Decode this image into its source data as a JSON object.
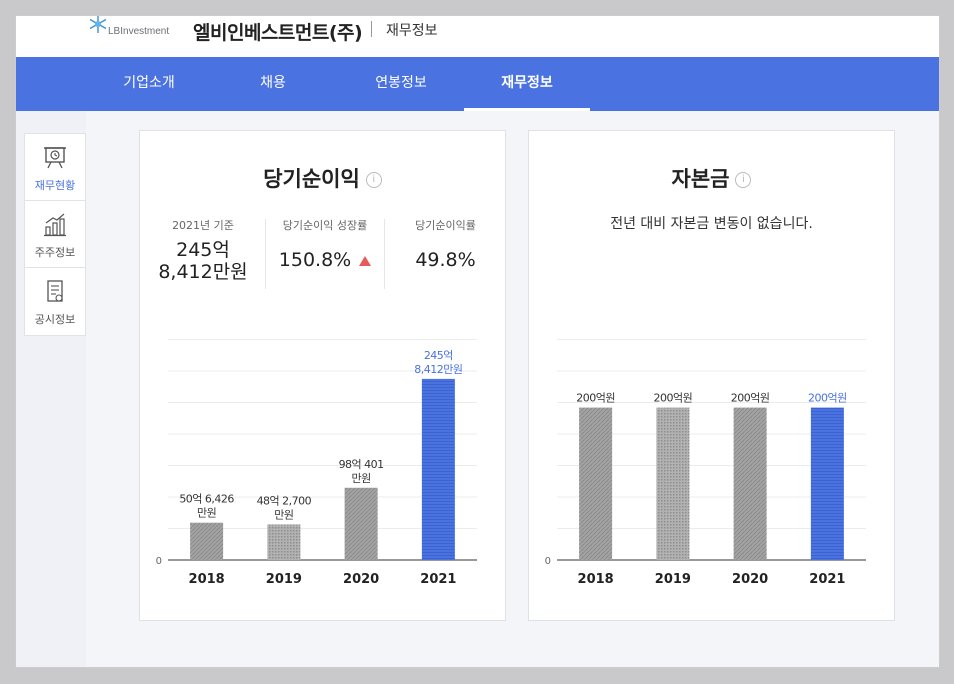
{
  "header": {
    "logo_text": "LBInvestment",
    "company_name": "엘비인베스트먼트(주)",
    "section": "재무정보"
  },
  "nav": {
    "tabs": [
      {
        "label": "기업소개",
        "active": false
      },
      {
        "label": "채용",
        "active": false
      },
      {
        "label": "연봉정보",
        "active": false
      },
      {
        "label": "재무정보",
        "active": true
      }
    ]
  },
  "sidebar": {
    "items": [
      {
        "label": "재무현황",
        "icon": "presentation-clock-icon",
        "active": true
      },
      {
        "label": "주주정보",
        "icon": "bar-growth-icon",
        "active": false
      },
      {
        "label": "공시정보",
        "icon": "document-icon",
        "active": false
      }
    ]
  },
  "net_income": {
    "title": "당기순이익",
    "info": "i",
    "stats": [
      {
        "label": "2021년 기준",
        "value_line1": "245억",
        "value_line2": "8,412만원"
      },
      {
        "label": "당기순이익 성장률",
        "value": "150.8%",
        "trend": "up"
      },
      {
        "label": "당기순이익률",
        "value": "49.8%"
      }
    ]
  },
  "capital": {
    "title": "자본금",
    "info": "i",
    "note": "전년 대비 자본금 변동이 없습니다."
  },
  "colors": {
    "accent": "#4a72e0",
    "highlight_bar": "#4a72e0",
    "gray_bar": "#9a9a9a",
    "up": "#e55a5a"
  },
  "chart_data": [
    {
      "type": "bar",
      "title": "당기순이익",
      "categories": [
        "2018",
        "2019",
        "2020",
        "2021"
      ],
      "values": [
        50.64,
        48.27,
        98.04,
        245.84
      ],
      "unit": "억원",
      "data_labels": [
        [
          "50억 6,426",
          "만원"
        ],
        [
          "48억 2,700",
          "만원"
        ],
        [
          "98억 401",
          "만원"
        ],
        [
          "245억",
          "8,412만원"
        ]
      ],
      "y_tick": "0",
      "ylim": [
        0,
        300
      ],
      "highlight_index": 3,
      "grid": true
    },
    {
      "type": "bar",
      "title": "자본금",
      "categories": [
        "2018",
        "2019",
        "2020",
        "2021"
      ],
      "values": [
        200,
        200,
        200,
        200
      ],
      "unit": "억원",
      "data_labels": [
        [
          "200억원"
        ],
        [
          "200억원"
        ],
        [
          "200억원"
        ],
        [
          "200억원"
        ]
      ],
      "y_tick": "0",
      "ylim": [
        0,
        290
      ],
      "highlight_index": 3,
      "grid": true
    }
  ]
}
